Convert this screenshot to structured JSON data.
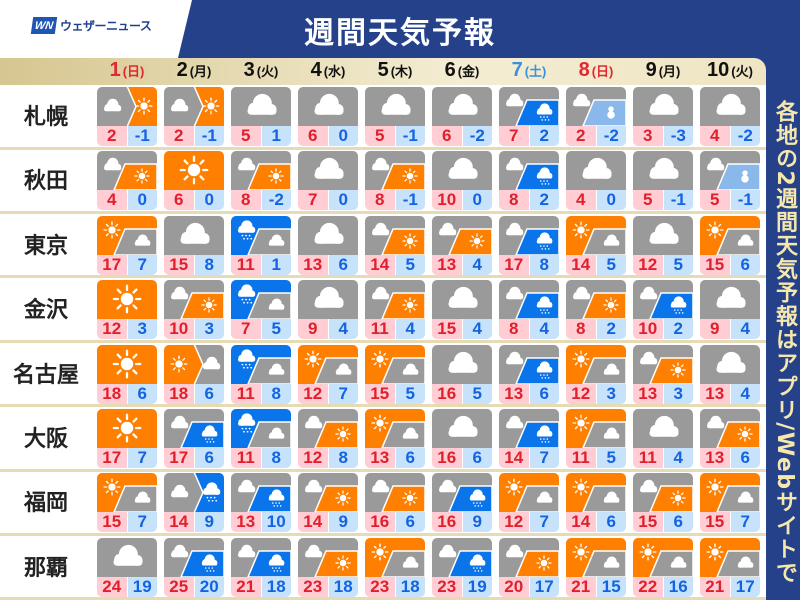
{
  "header": {
    "logo_mark": "WN",
    "logo_text": "ウェザーニュース",
    "title": "週間天気予報"
  },
  "side_note": "各地の2週間天気予報はアプリ/Webサイトで",
  "colors": {
    "sun": "#ff8000",
    "cloud": "#9a9a9a",
    "rain": "#0a74ea",
    "snow": "#0a74ea",
    "snowman": "#8ab8ea",
    "navy": "#24418a",
    "sunday": "#e0282e",
    "saturday": "#3a8fe0"
  },
  "days": [
    {
      "date": "1",
      "weekday": "(日)",
      "type": "sunday"
    },
    {
      "date": "2",
      "weekday": "(月)",
      "type": "weekday"
    },
    {
      "date": "3",
      "weekday": "(火)",
      "type": "weekday"
    },
    {
      "date": "4",
      "weekday": "(水)",
      "type": "weekday"
    },
    {
      "date": "5",
      "weekday": "(木)",
      "type": "weekday"
    },
    {
      "date": "6",
      "weekday": "(金)",
      "type": "weekday"
    },
    {
      "date": "7",
      "weekday": "(土)",
      "type": "saturday"
    },
    {
      "date": "8",
      "weekday": "(日)",
      "type": "sunday"
    },
    {
      "date": "9",
      "weekday": "(月)",
      "type": "weekday"
    },
    {
      "date": "10",
      "weekday": "(火)",
      "type": "weekday"
    }
  ],
  "cities": [
    {
      "name": "札幌",
      "forecast": [
        {
          "w": "cloud>sun",
          "hi": "2",
          "lo": "-1"
        },
        {
          "w": "cloud>sun",
          "hi": "2",
          "lo": "-1"
        },
        {
          "w": "cloud",
          "hi": "5",
          "lo": "1"
        },
        {
          "w": "cloud",
          "hi": "6",
          "lo": "0"
        },
        {
          "w": "cloud",
          "hi": "5",
          "lo": "-1"
        },
        {
          "w": "cloud",
          "hi": "6",
          "lo": "-2"
        },
        {
          "w": "cloud/snow",
          "hi": "7",
          "lo": "2"
        },
        {
          "w": "cloud/snowman",
          "hi": "2",
          "lo": "-2"
        },
        {
          "w": "cloud",
          "hi": "3",
          "lo": "-3"
        },
        {
          "w": "cloud",
          "hi": "4",
          "lo": "-2"
        }
      ]
    },
    {
      "name": "秋田",
      "forecast": [
        {
          "w": "cloud/sun",
          "hi": "4",
          "lo": "0"
        },
        {
          "w": "sun",
          "hi": "6",
          "lo": "0"
        },
        {
          "w": "cloud/sun",
          "hi": "8",
          "lo": "-2"
        },
        {
          "w": "cloud",
          "hi": "7",
          "lo": "0"
        },
        {
          "w": "cloud/sun",
          "hi": "8",
          "lo": "-1"
        },
        {
          "w": "cloud",
          "hi": "10",
          "lo": "0"
        },
        {
          "w": "cloud/snow",
          "hi": "8",
          "lo": "2"
        },
        {
          "w": "cloud",
          "hi": "4",
          "lo": "0"
        },
        {
          "w": "cloud",
          "hi": "5",
          "lo": "-1"
        },
        {
          "w": "cloud/snowman",
          "hi": "5",
          "lo": "-1"
        }
      ]
    },
    {
      "name": "東京",
      "forecast": [
        {
          "w": "sun/cloud",
          "hi": "17",
          "lo": "7"
        },
        {
          "w": "cloud",
          "hi": "15",
          "lo": "8"
        },
        {
          "w": "rain/cloud",
          "hi": "11",
          "lo": "1"
        },
        {
          "w": "cloud",
          "hi": "13",
          "lo": "6"
        },
        {
          "w": "cloud/sun",
          "hi": "14",
          "lo": "5"
        },
        {
          "w": "cloud/sun",
          "hi": "13",
          "lo": "4"
        },
        {
          "w": "cloud/rain",
          "hi": "17",
          "lo": "8"
        },
        {
          "w": "sun/cloud",
          "hi": "14",
          "lo": "5"
        },
        {
          "w": "cloud",
          "hi": "12",
          "lo": "5"
        },
        {
          "w": "sun/cloud",
          "hi": "15",
          "lo": "6"
        }
      ]
    },
    {
      "name": "金沢",
      "forecast": [
        {
          "w": "sun",
          "hi": "12",
          "lo": "3"
        },
        {
          "w": "cloud/sun",
          "hi": "10",
          "lo": "3"
        },
        {
          "w": "rain/cloud",
          "hi": "7",
          "lo": "5"
        },
        {
          "w": "cloud",
          "hi": "9",
          "lo": "4"
        },
        {
          "w": "cloud/sun",
          "hi": "11",
          "lo": "4"
        },
        {
          "w": "cloud",
          "hi": "15",
          "lo": "4"
        },
        {
          "w": "cloud/rain",
          "hi": "8",
          "lo": "4"
        },
        {
          "w": "cloud/sun",
          "hi": "8",
          "lo": "2"
        },
        {
          "w": "cloud/rain",
          "hi": "10",
          "lo": "2"
        },
        {
          "w": "cloud",
          "hi": "9",
          "lo": "4"
        }
      ]
    },
    {
      "name": "名古屋",
      "forecast": [
        {
          "w": "sun",
          "hi": "18",
          "lo": "6"
        },
        {
          "w": "sun>cloud",
          "hi": "18",
          "lo": "6"
        },
        {
          "w": "rain/cloud",
          "hi": "11",
          "lo": "8"
        },
        {
          "w": "sun/cloud",
          "hi": "12",
          "lo": "7"
        },
        {
          "w": "sun/cloud",
          "hi": "15",
          "lo": "5"
        },
        {
          "w": "cloud",
          "hi": "16",
          "lo": "5"
        },
        {
          "w": "cloud/rain",
          "hi": "13",
          "lo": "6"
        },
        {
          "w": "sun/cloud",
          "hi": "12",
          "lo": "3"
        },
        {
          "w": "cloud/sun",
          "hi": "13",
          "lo": "3"
        },
        {
          "w": "cloud",
          "hi": "13",
          "lo": "4"
        }
      ]
    },
    {
      "name": "大阪",
      "forecast": [
        {
          "w": "sun",
          "hi": "17",
          "lo": "7"
        },
        {
          "w": "cloud/rain",
          "hi": "17",
          "lo": "6"
        },
        {
          "w": "rain/cloud",
          "hi": "11",
          "lo": "8"
        },
        {
          "w": "cloud/sun",
          "hi": "12",
          "lo": "8"
        },
        {
          "w": "sun/cloud",
          "hi": "13",
          "lo": "6"
        },
        {
          "w": "cloud",
          "hi": "16",
          "lo": "6"
        },
        {
          "w": "cloud/rain",
          "hi": "14",
          "lo": "7"
        },
        {
          "w": "sun/cloud",
          "hi": "11",
          "lo": "5"
        },
        {
          "w": "cloud",
          "hi": "11",
          "lo": "4"
        },
        {
          "w": "cloud/sun",
          "hi": "13",
          "lo": "6"
        }
      ]
    },
    {
      "name": "福岡",
      "forecast": [
        {
          "w": "sun/cloud",
          "hi": "15",
          "lo": "7"
        },
        {
          "w": "cloud>rain",
          "hi": "14",
          "lo": "9"
        },
        {
          "w": "cloud/rain",
          "hi": "13",
          "lo": "10"
        },
        {
          "w": "cloud/sun",
          "hi": "14",
          "lo": "9"
        },
        {
          "w": "cloud/sun",
          "hi": "16",
          "lo": "6"
        },
        {
          "w": "cloud/rain",
          "hi": "16",
          "lo": "9"
        },
        {
          "w": "sun/cloud",
          "hi": "12",
          "lo": "7"
        },
        {
          "w": "sun/cloud",
          "hi": "14",
          "lo": "6"
        },
        {
          "w": "cloud/sun",
          "hi": "15",
          "lo": "6"
        },
        {
          "w": "sun/cloud",
          "hi": "15",
          "lo": "7"
        }
      ]
    },
    {
      "name": "那覇",
      "forecast": [
        {
          "w": "cloud",
          "hi": "24",
          "lo": "19"
        },
        {
          "w": "cloud/rain",
          "hi": "25",
          "lo": "20"
        },
        {
          "w": "cloud/rain",
          "hi": "21",
          "lo": "18"
        },
        {
          "w": "cloud/sun",
          "hi": "23",
          "lo": "18"
        },
        {
          "w": "sun/cloud",
          "hi": "23",
          "lo": "18"
        },
        {
          "w": "cloud/rain",
          "hi": "23",
          "lo": "19"
        },
        {
          "w": "cloud/sun",
          "hi": "20",
          "lo": "17"
        },
        {
          "w": "sun/cloud",
          "hi": "21",
          "lo": "15"
        },
        {
          "w": "sun/cloud",
          "hi": "22",
          "lo": "16"
        },
        {
          "w": "sun/cloud",
          "hi": "21",
          "lo": "17"
        }
      ]
    }
  ]
}
